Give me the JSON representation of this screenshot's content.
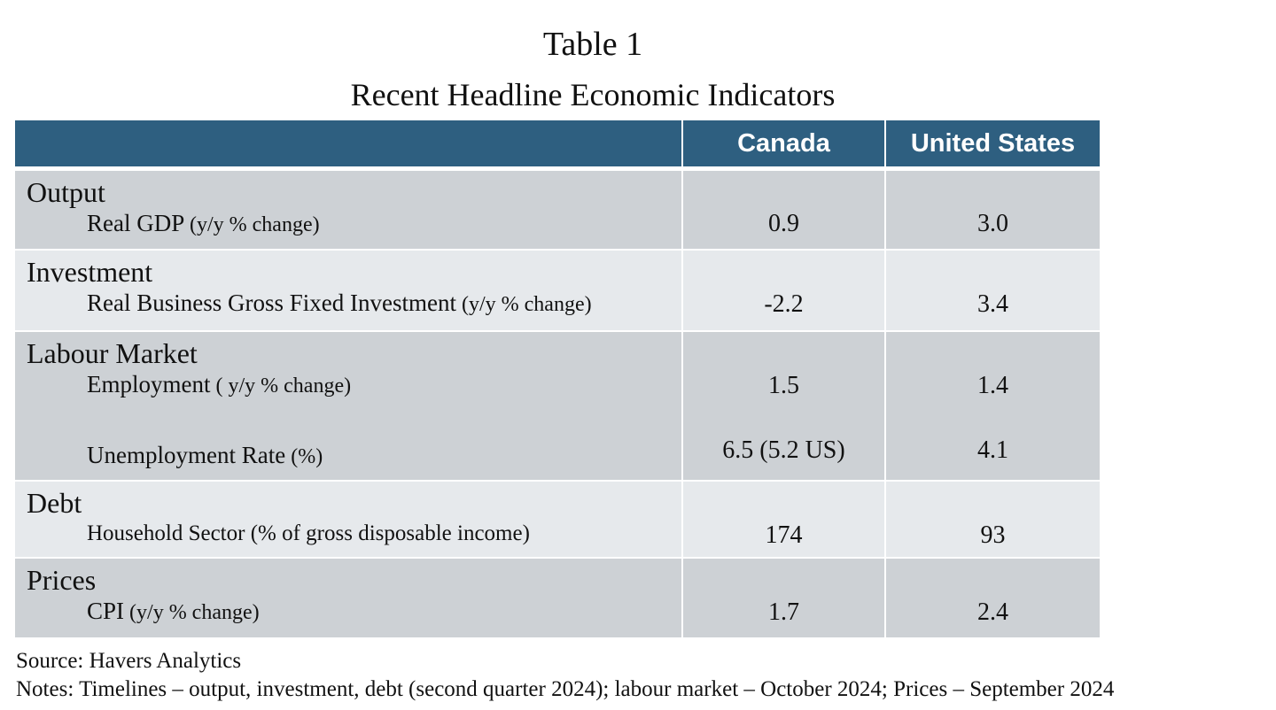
{
  "title": "Table 1",
  "subtitle": "Recent Headline Economic Indicators",
  "columns": [
    "",
    "Canada",
    "United States"
  ],
  "sections": {
    "output": {
      "category": "Output",
      "label": "Real GDP ",
      "unit": " (y/y % change)",
      "canada": "0.9",
      "us": "3.0"
    },
    "investment": {
      "category": "Investment",
      "label": "Real Business Gross Fixed Investment",
      "unit": " (y/y % change)",
      "canada": "-2.2",
      "us": "3.4"
    },
    "labour": {
      "category": "Labour Market",
      "employment": {
        "label": "Employment",
        "unit": " ( y/y % change)",
        "canada": "1.5",
        "us": "1.4"
      },
      "unemployment": {
        "label": "Unemployment Rate",
        "unit": " (%)",
        "canada": "6.5 (5.2 US)",
        "us": "4.1"
      }
    },
    "debt": {
      "category": "Debt",
      "label": "Household Sector (% of gross disposable income)",
      "canada": "174",
      "us": "93"
    },
    "prices": {
      "category": "Prices",
      "label": "CPI",
      "unit": " (y/y % change)",
      "canada": "1.7",
      "us": "2.4"
    }
  },
  "source": "Source: Havers Analytics",
  "notes": "Notes: Timelines – output, investment, debt (second quarter 2024); labour market – October 2024; Prices – September 2024"
}
